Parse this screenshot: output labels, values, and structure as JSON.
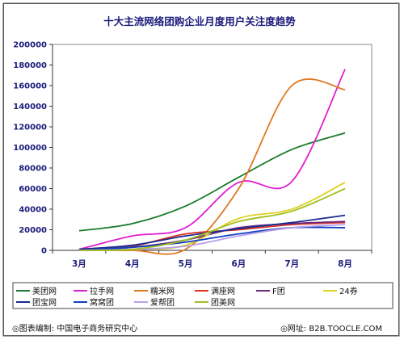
{
  "chart_data": {
    "type": "line",
    "title": "十大主流网络团购企业月度用户关注度趋势",
    "categories": [
      "3月",
      "4月",
      "5月",
      "6月",
      "7月",
      "8月"
    ],
    "yticks": [
      0,
      20000,
      40000,
      60000,
      80000,
      100000,
      120000,
      140000,
      160000,
      180000,
      200000
    ],
    "ylim": [
      0,
      200000
    ],
    "grid": false,
    "legend_position": "bottom",
    "series": [
      {
        "name": "美团网",
        "color": "#1a7a2a",
        "values": [
          19000,
          26000,
          43000,
          71000,
          98000,
          114000
        ]
      },
      {
        "name": "拉手网",
        "color": "#e020d0",
        "values": [
          1000,
          14000,
          22000,
          66000,
          67000,
          176000
        ]
      },
      {
        "name": "糯米网",
        "color": "#e07820",
        "values": [
          0,
          0,
          1000,
          60000,
          160000,
          156000
        ]
      },
      {
        "name": "满座网",
        "color": "#e03020",
        "values": [
          0,
          4000,
          16000,
          20000,
          25000,
          27000
        ]
      },
      {
        "name": "F团",
        "color": "#6a2a80",
        "values": [
          0,
          3000,
          10000,
          22000,
          26000,
          28000
        ]
      },
      {
        "name": "24券",
        "color": "#e0d020",
        "values": [
          0,
          1000,
          5000,
          31000,
          40000,
          66000
        ]
      },
      {
        "name": "团宝网",
        "color": "#1a2a90",
        "values": [
          1000,
          5000,
          14000,
          21000,
          27000,
          34000
        ]
      },
      {
        "name": "窝窝团",
        "color": "#1040c0",
        "values": [
          0,
          3000,
          8000,
          16000,
          22000,
          22000
        ]
      },
      {
        "name": "爱帮团",
        "color": "#b8a0e8",
        "values": [
          0,
          1000,
          4000,
          14000,
          22000,
          25000
        ]
      },
      {
        "name": "团美网",
        "color": "#a0c020",
        "values": [
          0,
          1000,
          10000,
          28000,
          38000,
          60000
        ]
      }
    ]
  },
  "footer": {
    "left": "◎图表编制: 中国电子商务研究中心",
    "right": "◎网址: B2B.TOOCLE.COM"
  }
}
